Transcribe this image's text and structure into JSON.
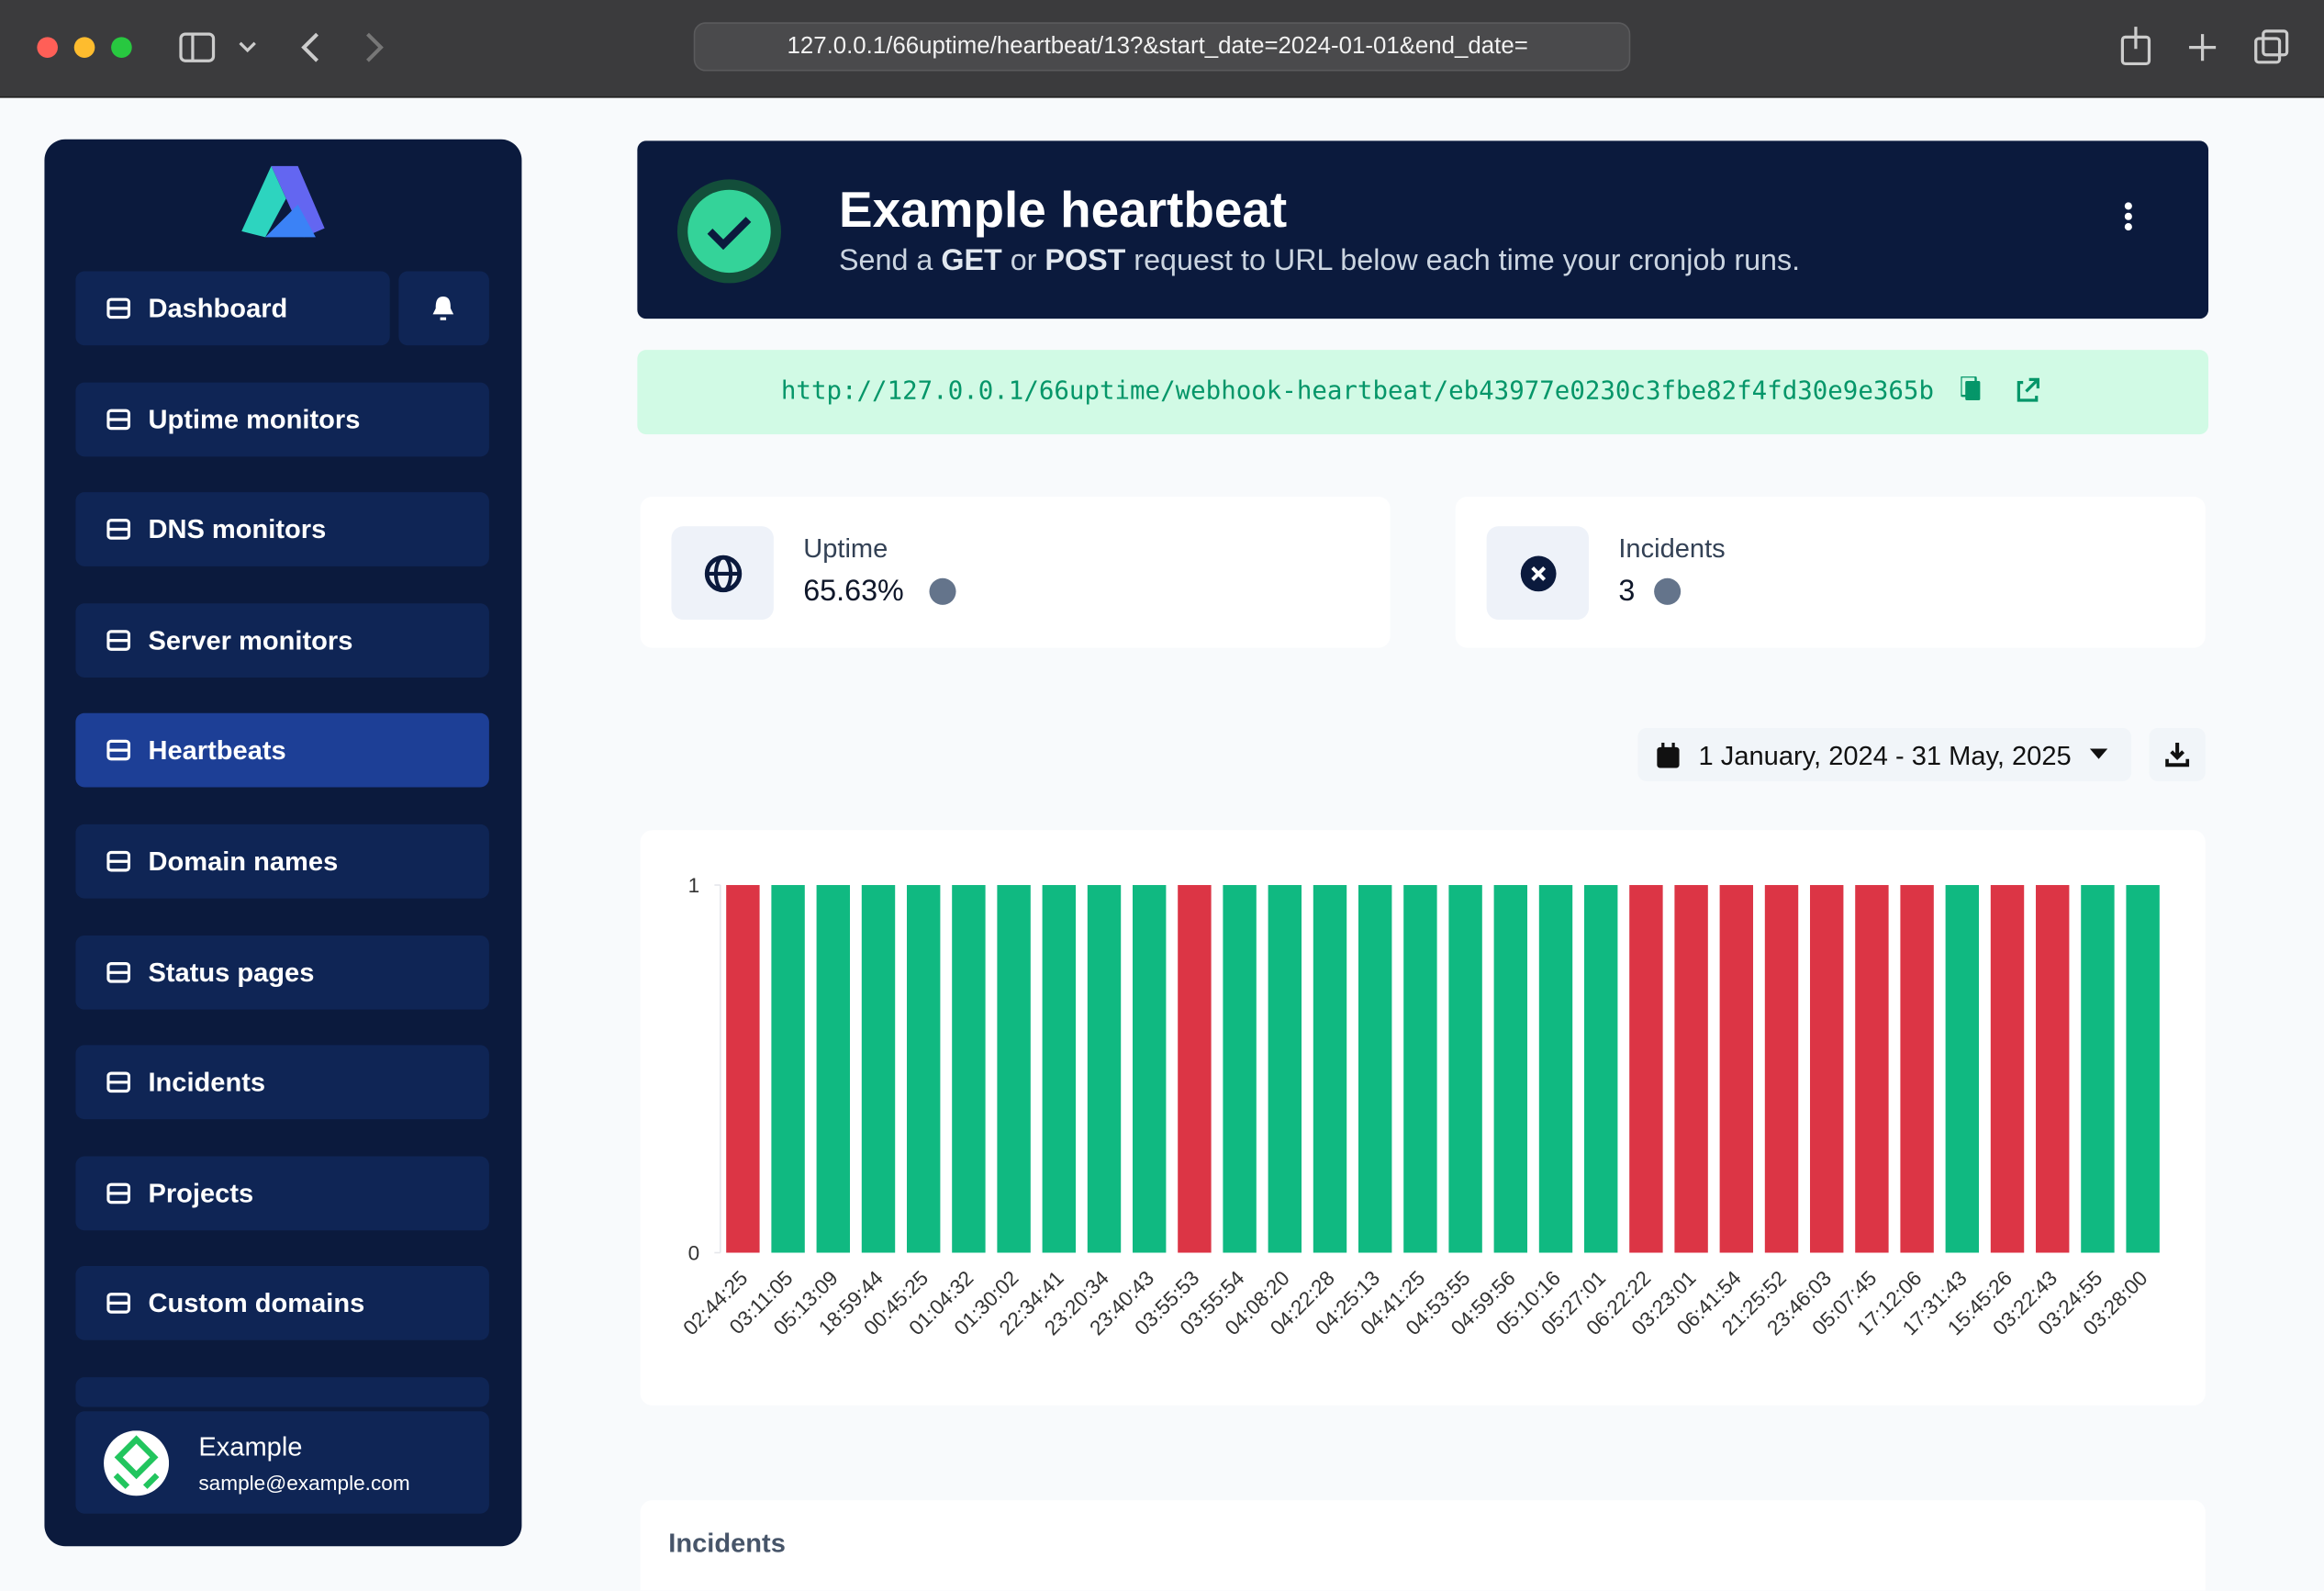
{
  "browser": {
    "url": "127.0.0.1/66uptime/heartbeat/13?&start_date=2024-01-01&end_date="
  },
  "sidebar": {
    "nav": [
      "Dashboard",
      "Uptime monitors",
      "DNS monitors",
      "Server monitors",
      "Heartbeats",
      "Domain names",
      "Status pages",
      "Incidents",
      "Projects",
      "Custom domains"
    ],
    "user": {
      "name": "Example",
      "email": "sample@example.com"
    }
  },
  "header": {
    "title": "Example heartbeat",
    "subtitle": [
      "Send a ",
      "GET",
      " or ",
      "POST",
      " request to URL below each time your cronjob runs."
    ]
  },
  "webhook_url": "http://127.0.0.1/66uptime/webhook-heartbeat/eb43977e0230c3fbe82f4fd30e9e365b",
  "stats": [
    {
      "label": "Uptime",
      "value": "65.63%"
    },
    {
      "label": "Incidents",
      "value": "3"
    }
  ],
  "date_range": "1 January, 2024 - 31 May, 2025",
  "incidents_title": "Incidents",
  "chart_data": {
    "type": "bar",
    "categories": [
      "02:44:25",
      "03:11:05",
      "05:13:09",
      "18:59:44",
      "00:45:25",
      "01:04:32",
      "01:30:02",
      "22:34:41",
      "23:20:34",
      "23:40:43",
      "03:55:53",
      "03:55:54",
      "04:08:20",
      "04:22:28",
      "04:25:13",
      "04:41:25",
      "04:53:55",
      "04:59:56",
      "05:10:16",
      "05:27:01",
      "06:22:22",
      "03:23:01",
      "06:41:54",
      "21:25:52",
      "23:46:03",
      "05:07:45",
      "17:12:06",
      "17:31:43",
      "15:45:26",
      "03:22:43",
      "03:24:55",
      "03:28:00"
    ],
    "values": [
      1,
      1,
      1,
      1,
      1,
      1,
      1,
      1,
      1,
      1,
      1,
      1,
      1,
      1,
      1,
      1,
      1,
      1,
      1,
      1,
      1,
      1,
      1,
      1,
      1,
      1,
      1,
      1,
      1,
      1,
      1,
      1
    ],
    "colors": [
      "#dc3545",
      "#10b981",
      "#10b981",
      "#10b981",
      "#10b981",
      "#10b981",
      "#10b981",
      "#10b981",
      "#10b981",
      "#10b981",
      "#dc3545",
      "#10b981",
      "#10b981",
      "#10b981",
      "#10b981",
      "#10b981",
      "#10b981",
      "#10b981",
      "#10b981",
      "#10b981",
      "#dc3545",
      "#dc3545",
      "#dc3545",
      "#dc3545",
      "#dc3545",
      "#dc3545",
      "#dc3545",
      "#10b981",
      "#dc3545",
      "#dc3545",
      "#10b981",
      "#10b981"
    ],
    "ylim": [
      0,
      1
    ],
    "yticks": [
      0,
      1
    ]
  }
}
